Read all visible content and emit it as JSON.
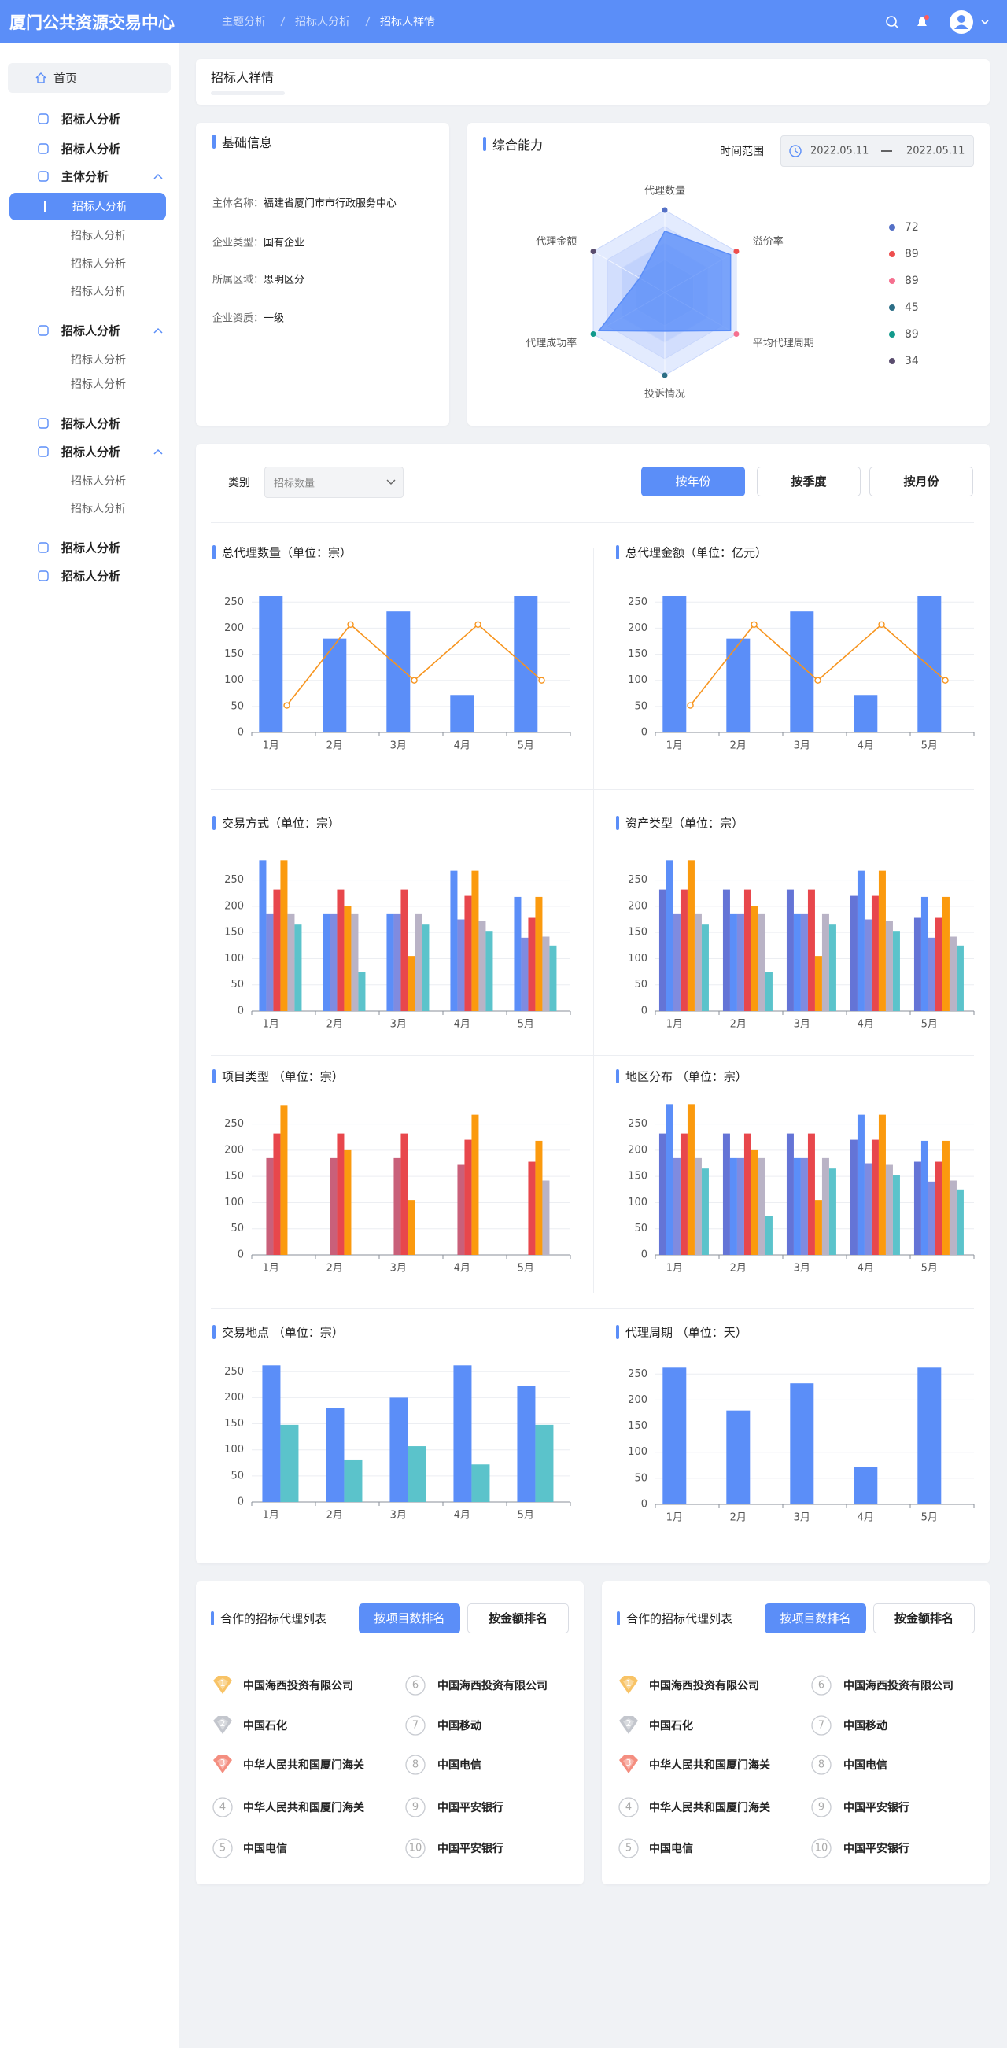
{
  "header": {
    "title": "厦门公共资源交易中心",
    "breadcrumbs": [
      "主题分析",
      "招标人分析",
      "招标人祥情"
    ]
  },
  "sidebar": {
    "items": [
      "首页",
      "招标人分析",
      "招标人分析",
      "主体分析",
      "招标人分析",
      "招标人分析",
      "招标人分析",
      "招标人分析",
      "招标人分析",
      "招标人分析",
      "招标人分析",
      "招标人分析",
      "招标人分析",
      "招标人分析",
      "招标人分析",
      "招标人分析",
      "招标人分析"
    ]
  },
  "page_title": "招标人祥情",
  "basic_info": {
    "title": "基础信息",
    "rows": [
      [
        "主体名称：",
        "福建省厦门市市行政服务中心"
      ],
      [
        "企业类型：",
        "国有企业"
      ],
      [
        "所属区域：",
        "思明区分"
      ],
      [
        "企业资质：",
        "一级"
      ]
    ]
  },
  "ability": {
    "title": "综合能力",
    "time_range_label": "时间范围",
    "start_date": "2022.05.11",
    "end_date": "2022.05.11",
    "radar": {
      "type": "radar",
      "indicators": [
        "代理数量",
        "溢价率",
        "平均代理周期",
        "投诉情况",
        "代理成功率",
        "代理金额"
      ],
      "values": [
        72,
        89,
        89,
        45,
        89,
        34
      ],
      "colors": [
        "#5470c6",
        "#ee4e4e",
        "#f5708f",
        "#2c6e86",
        "#129a8c",
        "#5a4d6e"
      ]
    }
  },
  "filters": {
    "category_label": "类别",
    "category_value": "招标数量",
    "buttons": [
      "按年份",
      "按季度",
      "按月份"
    ]
  },
  "charts": [
    {
      "type": "bar",
      "title": "总代理数量（单位：宗）",
      "categories": [
        "1月",
        "2月",
        "3月",
        "4月",
        "5月"
      ],
      "series": [
        {
          "type": "bar",
          "color": "#5b8ef8",
          "values": [
            262,
            180,
            232,
            72,
            262
          ]
        },
        {
          "type": "line",
          "color": "#f7941d",
          "values": [
            52,
            207,
            100,
            207,
            100
          ]
        }
      ],
      "ylim": [
        0,
        270
      ],
      "yticks": [
        0,
        50,
        100,
        150,
        200,
        250
      ],
      "grid": true
    },
    {
      "type": "bar",
      "title": "总代理金额（单位：亿元）",
      "categories": [
        "1月",
        "2月",
        "3月",
        "4月",
        "5月"
      ],
      "series": [
        {
          "type": "bar",
          "color": "#5b8ef8",
          "values": [
            262,
            180,
            232,
            72,
            262
          ]
        },
        {
          "type": "line",
          "color": "#f7941d",
          "values": [
            52,
            207,
            100,
            207,
            100
          ]
        }
      ],
      "ylim": [
        0,
        270
      ],
      "yticks": [
        0,
        50,
        100,
        150,
        200,
        250
      ],
      "grid": true
    },
    {
      "type": "bar",
      "title": "交易方式（单位：宗）",
      "categories": [
        "1月",
        "2月",
        "3月",
        "4月",
        "5月"
      ],
      "series": [
        {
          "type": "bar",
          "color": "#5b8ef8",
          "values": [
            288,
            185,
            185,
            268,
            218
          ]
        },
        {
          "type": "bar",
          "color": "#7f8be0",
          "values": [
            185,
            185,
            185,
            175,
            140
          ]
        },
        {
          "type": "bar",
          "color": "#e8474c",
          "values": [
            232,
            232,
            232,
            220,
            178
          ]
        },
        {
          "type": "bar",
          "color": "#fb9a0e",
          "values": [
            288,
            200,
            105,
            268,
            218
          ]
        },
        {
          "type": "bar",
          "color": "#b9b3c6",
          "values": [
            185,
            185,
            185,
            172,
            142
          ]
        },
        {
          "type": "bar",
          "color": "#5bc3cb",
          "values": [
            165,
            75,
            165,
            153,
            125
          ]
        }
      ],
      "ylim": [
        0,
        290
      ],
      "yticks": [
        0,
        50,
        100,
        150,
        200,
        250
      ],
      "grid": true
    },
    {
      "type": "bar",
      "title": "资产类型（单位：宗）",
      "categories": [
        "1月",
        "2月",
        "3月",
        "4月",
        "5月"
      ],
      "series": [
        {
          "type": "bar",
          "color": "#6474d6",
          "values": [
            232,
            232,
            232,
            220,
            178
          ]
        },
        {
          "type": "bar",
          "color": "#5b8ef8",
          "values": [
            288,
            185,
            185,
            268,
            218
          ]
        },
        {
          "type": "bar",
          "color": "#7f8be0",
          "values": [
            185,
            185,
            185,
            175,
            140
          ]
        },
        {
          "type": "bar",
          "color": "#e8474c",
          "values": [
            232,
            232,
            232,
            220,
            178
          ]
        },
        {
          "type": "bar",
          "color": "#fb9a0e",
          "values": [
            288,
            200,
            105,
            268,
            218
          ]
        },
        {
          "type": "bar",
          "color": "#b9b3c6",
          "values": [
            185,
            185,
            185,
            172,
            142
          ]
        },
        {
          "type": "bar",
          "color": "#5bc3cb",
          "values": [
            165,
            75,
            165,
            153,
            125
          ]
        }
      ],
      "ylim": [
        0,
        290
      ],
      "yticks": [
        0,
        50,
        100,
        150,
        200,
        250
      ],
      "grid": true
    },
    {
      "type": "bar",
      "title": "项目类型 （单位：宗）",
      "categories": [
        "1月",
        "2月",
        "3月",
        "4月",
        "5月"
      ],
      "series": [
        {
          "type": "bar",
          "color": "#c9607a",
          "values": [
            185,
            185,
            185,
            172,
            null
          ]
        },
        {
          "type": "bar",
          "color": "#e8474c",
          "values": [
            232,
            232,
            232,
            220,
            178
          ]
        },
        {
          "type": "bar",
          "color": "#fb9a0e",
          "values": [
            285,
            200,
            105,
            268,
            218
          ]
        },
        {
          "type": "bar",
          "color": "#b9b3c6",
          "values": [
            null,
            null,
            null,
            null,
            142
          ]
        }
      ],
      "ylim": [
        0,
        290
      ],
      "yticks": [
        0,
        50,
        100,
        150,
        200,
        250
      ],
      "grid": true
    },
    {
      "type": "bar",
      "title": "地区分布 （单位：宗）",
      "categories": [
        "1月",
        "2月",
        "3月",
        "4月",
        "5月"
      ],
      "series": [
        {
          "type": "bar",
          "color": "#6474d6",
          "values": [
            232,
            232,
            232,
            220,
            178
          ]
        },
        {
          "type": "bar",
          "color": "#5b8ef8",
          "values": [
            288,
            185,
            185,
            268,
            218
          ]
        },
        {
          "type": "bar",
          "color": "#7f8be0",
          "values": [
            185,
            185,
            185,
            175,
            140
          ]
        },
        {
          "type": "bar",
          "color": "#e8474c",
          "values": [
            232,
            232,
            232,
            220,
            178
          ]
        },
        {
          "type": "bar",
          "color": "#fb9a0e",
          "values": [
            288,
            200,
            105,
            268,
            218
          ]
        },
        {
          "type": "bar",
          "color": "#b9b3c6",
          "values": [
            185,
            185,
            185,
            172,
            142
          ]
        },
        {
          "type": "bar",
          "color": "#5bc3cb",
          "values": [
            165,
            75,
            165,
            153,
            125
          ]
        }
      ],
      "ylim": [
        0,
        290
      ],
      "yticks": [
        0,
        50,
        100,
        150,
        200,
        250
      ],
      "grid": true
    },
    {
      "type": "bar",
      "title": "交易地点 （单位：宗）",
      "categories": [
        "1月",
        "2月",
        "3月",
        "4月",
        "5月"
      ],
      "series": [
        {
          "type": "bar",
          "color": "#5b8ef8",
          "values": [
            262,
            180,
            200,
            262,
            222
          ]
        },
        {
          "type": "bar",
          "color": "#5bc3cb",
          "values": [
            148,
            80,
            107,
            72,
            148
          ]
        }
      ],
      "ylim": [
        0,
        270
      ],
      "yticks": [
        0,
        50,
        100,
        150,
        200,
        250
      ],
      "grid": true
    },
    {
      "type": "bar",
      "title": "代理周期 （单位：天）",
      "categories": [
        "1月",
        "2月",
        "3月",
        "4月",
        "5月"
      ],
      "series": [
        {
          "type": "bar",
          "color": "#5b8ef8",
          "values": [
            262,
            180,
            232,
            72,
            262
          ]
        }
      ],
      "ylim": [
        0,
        270
      ],
      "yticks": [
        0,
        50,
        100,
        150,
        200,
        250
      ],
      "grid": true
    }
  ],
  "agent_lists": [
    {
      "title": "合作的招标代理列表",
      "buttons": [
        "按项目数排名",
        "按金额排名"
      ],
      "items": [
        {
          "rank": 1,
          "name": "中国海西投资有限公司"
        },
        {
          "rank": 2,
          "name": "中国石化"
        },
        {
          "rank": 3,
          "name": "中华人民共和国厦门海关"
        },
        {
          "rank": 4,
          "name": "中华人民共和国厦门海关"
        },
        {
          "rank": 5,
          "name": "中国电信"
        },
        {
          "rank": 6,
          "name": "中国海西投资有限公司"
        },
        {
          "rank": 7,
          "name": "中国移动"
        },
        {
          "rank": 8,
          "name": "中国电信"
        },
        {
          "rank": 9,
          "name": "中国平安银行"
        },
        {
          "rank": 10,
          "name": "中国平安银行"
        }
      ]
    },
    {
      "title": "合作的招标代理列表",
      "buttons": [
        "按项目数排名",
        "按金额排名"
      ],
      "items": [
        {
          "rank": 1,
          "name": "中国海西投资有限公司"
        },
        {
          "rank": 2,
          "name": "中国石化"
        },
        {
          "rank": 3,
          "name": "中华人民共和国厦门海关"
        },
        {
          "rank": 4,
          "name": "中华人民共和国厦门海关"
        },
        {
          "rank": 5,
          "name": "中国电信"
        },
        {
          "rank": 6,
          "name": "中国海西投资有限公司"
        },
        {
          "rank": 7,
          "name": "中国移动"
        },
        {
          "rank": 8,
          "name": "中国电信"
        },
        {
          "rank": 9,
          "name": "中国平安银行"
        },
        {
          "rank": 10,
          "name": "中国平安银行"
        }
      ]
    }
  ]
}
